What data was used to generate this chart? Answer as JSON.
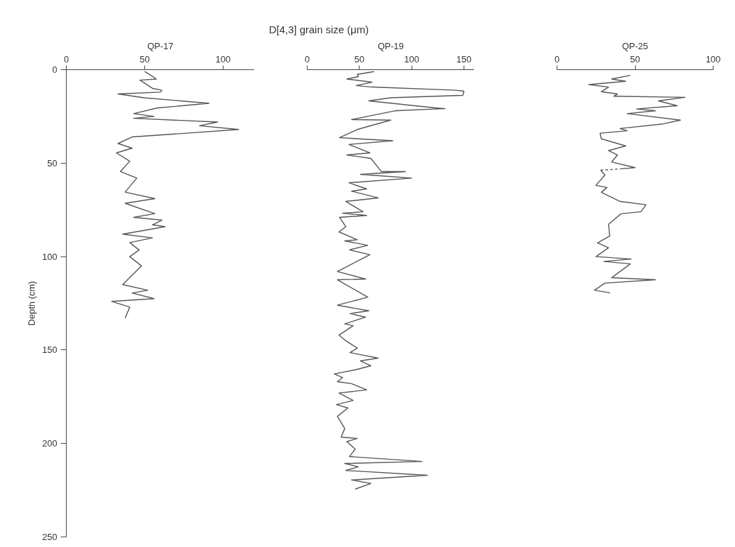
{
  "chart_data": [
    {
      "type": "line",
      "title": "QP-17",
      "ylabel": "Depth (cm)",
      "xlim": [
        0,
        120
      ],
      "xticks": [
        0,
        50,
        100
      ],
      "ylim": [
        250,
        0
      ],
      "yticks": [
        0,
        50,
        100,
        150,
        200,
        250
      ],
      "grid": false,
      "series": [
        {
          "color": "#555555",
          "x": [
            50,
            54,
            57.5,
            47,
            55,
            61,
            60,
            33,
            49.5,
            91,
            58,
            43,
            56,
            43,
            96.5,
            85,
            110,
            42,
            33,
            42,
            32,
            40.5,
            34.5,
            45,
            37.5,
            56.5,
            37.5,
            56.5,
            43,
            61,
            55,
            63,
            36,
            55,
            40.5,
            46.5,
            40.5,
            48,
            36,
            52,
            42,
            56,
            29,
            40.5,
            37.5
          ],
          "values": [
            1,
            3,
            5,
            5.6,
            10,
            11,
            12,
            13,
            15,
            18,
            20.5,
            23.5,
            25,
            26,
            28,
            30,
            32,
            36,
            39.5,
            42,
            44.5,
            49,
            54.5,
            58,
            65.5,
            69,
            71.5,
            77,
            79,
            80.5,
            83,
            84,
            88,
            90,
            92.5,
            96.5,
            100,
            105,
            115,
            118,
            119.5,
            122.5,
            124,
            127,
            133
          ]
        }
      ]
    },
    {
      "type": "line",
      "title": "QP-19",
      "xlabel": "D[4,3] grain size (μm)",
      "xlim": [
        0,
        160
      ],
      "xticks": [
        0,
        50,
        100,
        150
      ],
      "ylim": [
        250,
        0
      ],
      "tick_labels": "x",
      "grid": false,
      "series": [
        {
          "color": "#555555",
          "x": [
            64,
            48,
            49,
            38,
            62,
            47,
            62,
            142,
            150,
            149,
            80,
            59,
            122,
            132,
            84,
            60,
            42.5,
            80,
            48,
            31,
            82,
            40,
            60,
            38,
            61,
            71,
            94,
            51,
            100,
            40,
            57,
            42.5,
            68,
            37,
            53.5,
            34,
            57,
            31,
            37,
            30.5,
            48,
            36,
            58,
            40.5,
            60,
            29,
            56,
            29,
            58,
            29,
            59,
            41,
            56,
            36,
            44,
            30.5,
            37,
            48,
            41,
            68,
            51,
            61,
            46,
            26,
            34,
            29,
            42.5,
            57,
            30.5,
            44,
            28,
            39,
            29,
            36,
            32.5,
            48,
            38,
            46,
            40.5,
            110,
            36,
            49,
            37,
            115,
            42.5,
            61,
            46
          ],
          "values": [
            1,
            2.5,
            3.7,
            5,
            6.7,
            8.5,
            9.3,
            11,
            11.5,
            13.7,
            15,
            16.7,
            20.4,
            20.8,
            22,
            24.7,
            26.7,
            27,
            32,
            36.4,
            38,
            40,
            44.5,
            45.6,
            47.5,
            54.5,
            54.5,
            56,
            58,
            60.5,
            63.8,
            65,
            68.6,
            70.5,
            76,
            76.8,
            78,
            79,
            84,
            86.8,
            91,
            91.6,
            94,
            96.4,
            99,
            108,
            112,
            112.4,
            121.7,
            126,
            129,
            130.5,
            132.4,
            136,
            137,
            142,
            145,
            149,
            151.4,
            154.3,
            155.8,
            158.4,
            160.6,
            162.8,
            164.7,
            166.9,
            168,
            171.3,
            173,
            177,
            179.2,
            181,
            185.5,
            192,
            196.6,
            197.3,
            199,
            203,
            207,
            209.6,
            210.7,
            212.5,
            214.4,
            217,
            219.5,
            221.4,
            224.4
          ]
        }
      ]
    },
    {
      "type": "line",
      "title": "QP-25",
      "xlim": [
        0,
        100
      ],
      "xticks": [
        0,
        50,
        100
      ],
      "ylim": [
        250,
        0
      ],
      "tick_labels": "x",
      "grid": false,
      "series": [
        {
          "color": "#555555",
          "x": [
            47,
            35,
            44,
            20.4,
            33,
            28.4,
            38.7,
            36.4,
            82,
            65,
            77,
            51,
            63,
            45,
            79,
            68,
            40.4,
            45,
            27.6,
            28.4,
            44,
            33,
            38.7,
            35,
            50,
            42
          ],
          "values": [
            3,
            5,
            6.2,
            8,
            9.3,
            11.8,
            13,
            14.2,
            14.8,
            16.7,
            19.3,
            21,
            22,
            23.5,
            27,
            29,
            31.5,
            32.7,
            34,
            37,
            40.8,
            43.3,
            45.7,
            49.4,
            52.4,
            53
          ]
        },
        {
          "color": "#555555",
          "line_style": "dashed",
          "x": [
            42,
            28
          ],
          "values": [
            53,
            53.8
          ]
        },
        {
          "color": "#555555",
          "x": [
            28,
            30.7,
            24.9,
            32,
            28.4,
            40.4,
            57,
            53.8,
            41,
            33,
            33.8,
            26,
            33,
            25,
            47.5,
            30,
            47,
            35,
            63,
            30.7,
            24,
            34
          ],
          "values": [
            53.8,
            56.4,
            61.9,
            63,
            65.6,
            70.5,
            72.3,
            76,
            77.1,
            82.7,
            89,
            92.7,
            95.3,
            100,
            101.3,
            102.6,
            103.9,
            111.3,
            112.4,
            114.2,
            118,
            119.4
          ]
        }
      ]
    }
  ]
}
